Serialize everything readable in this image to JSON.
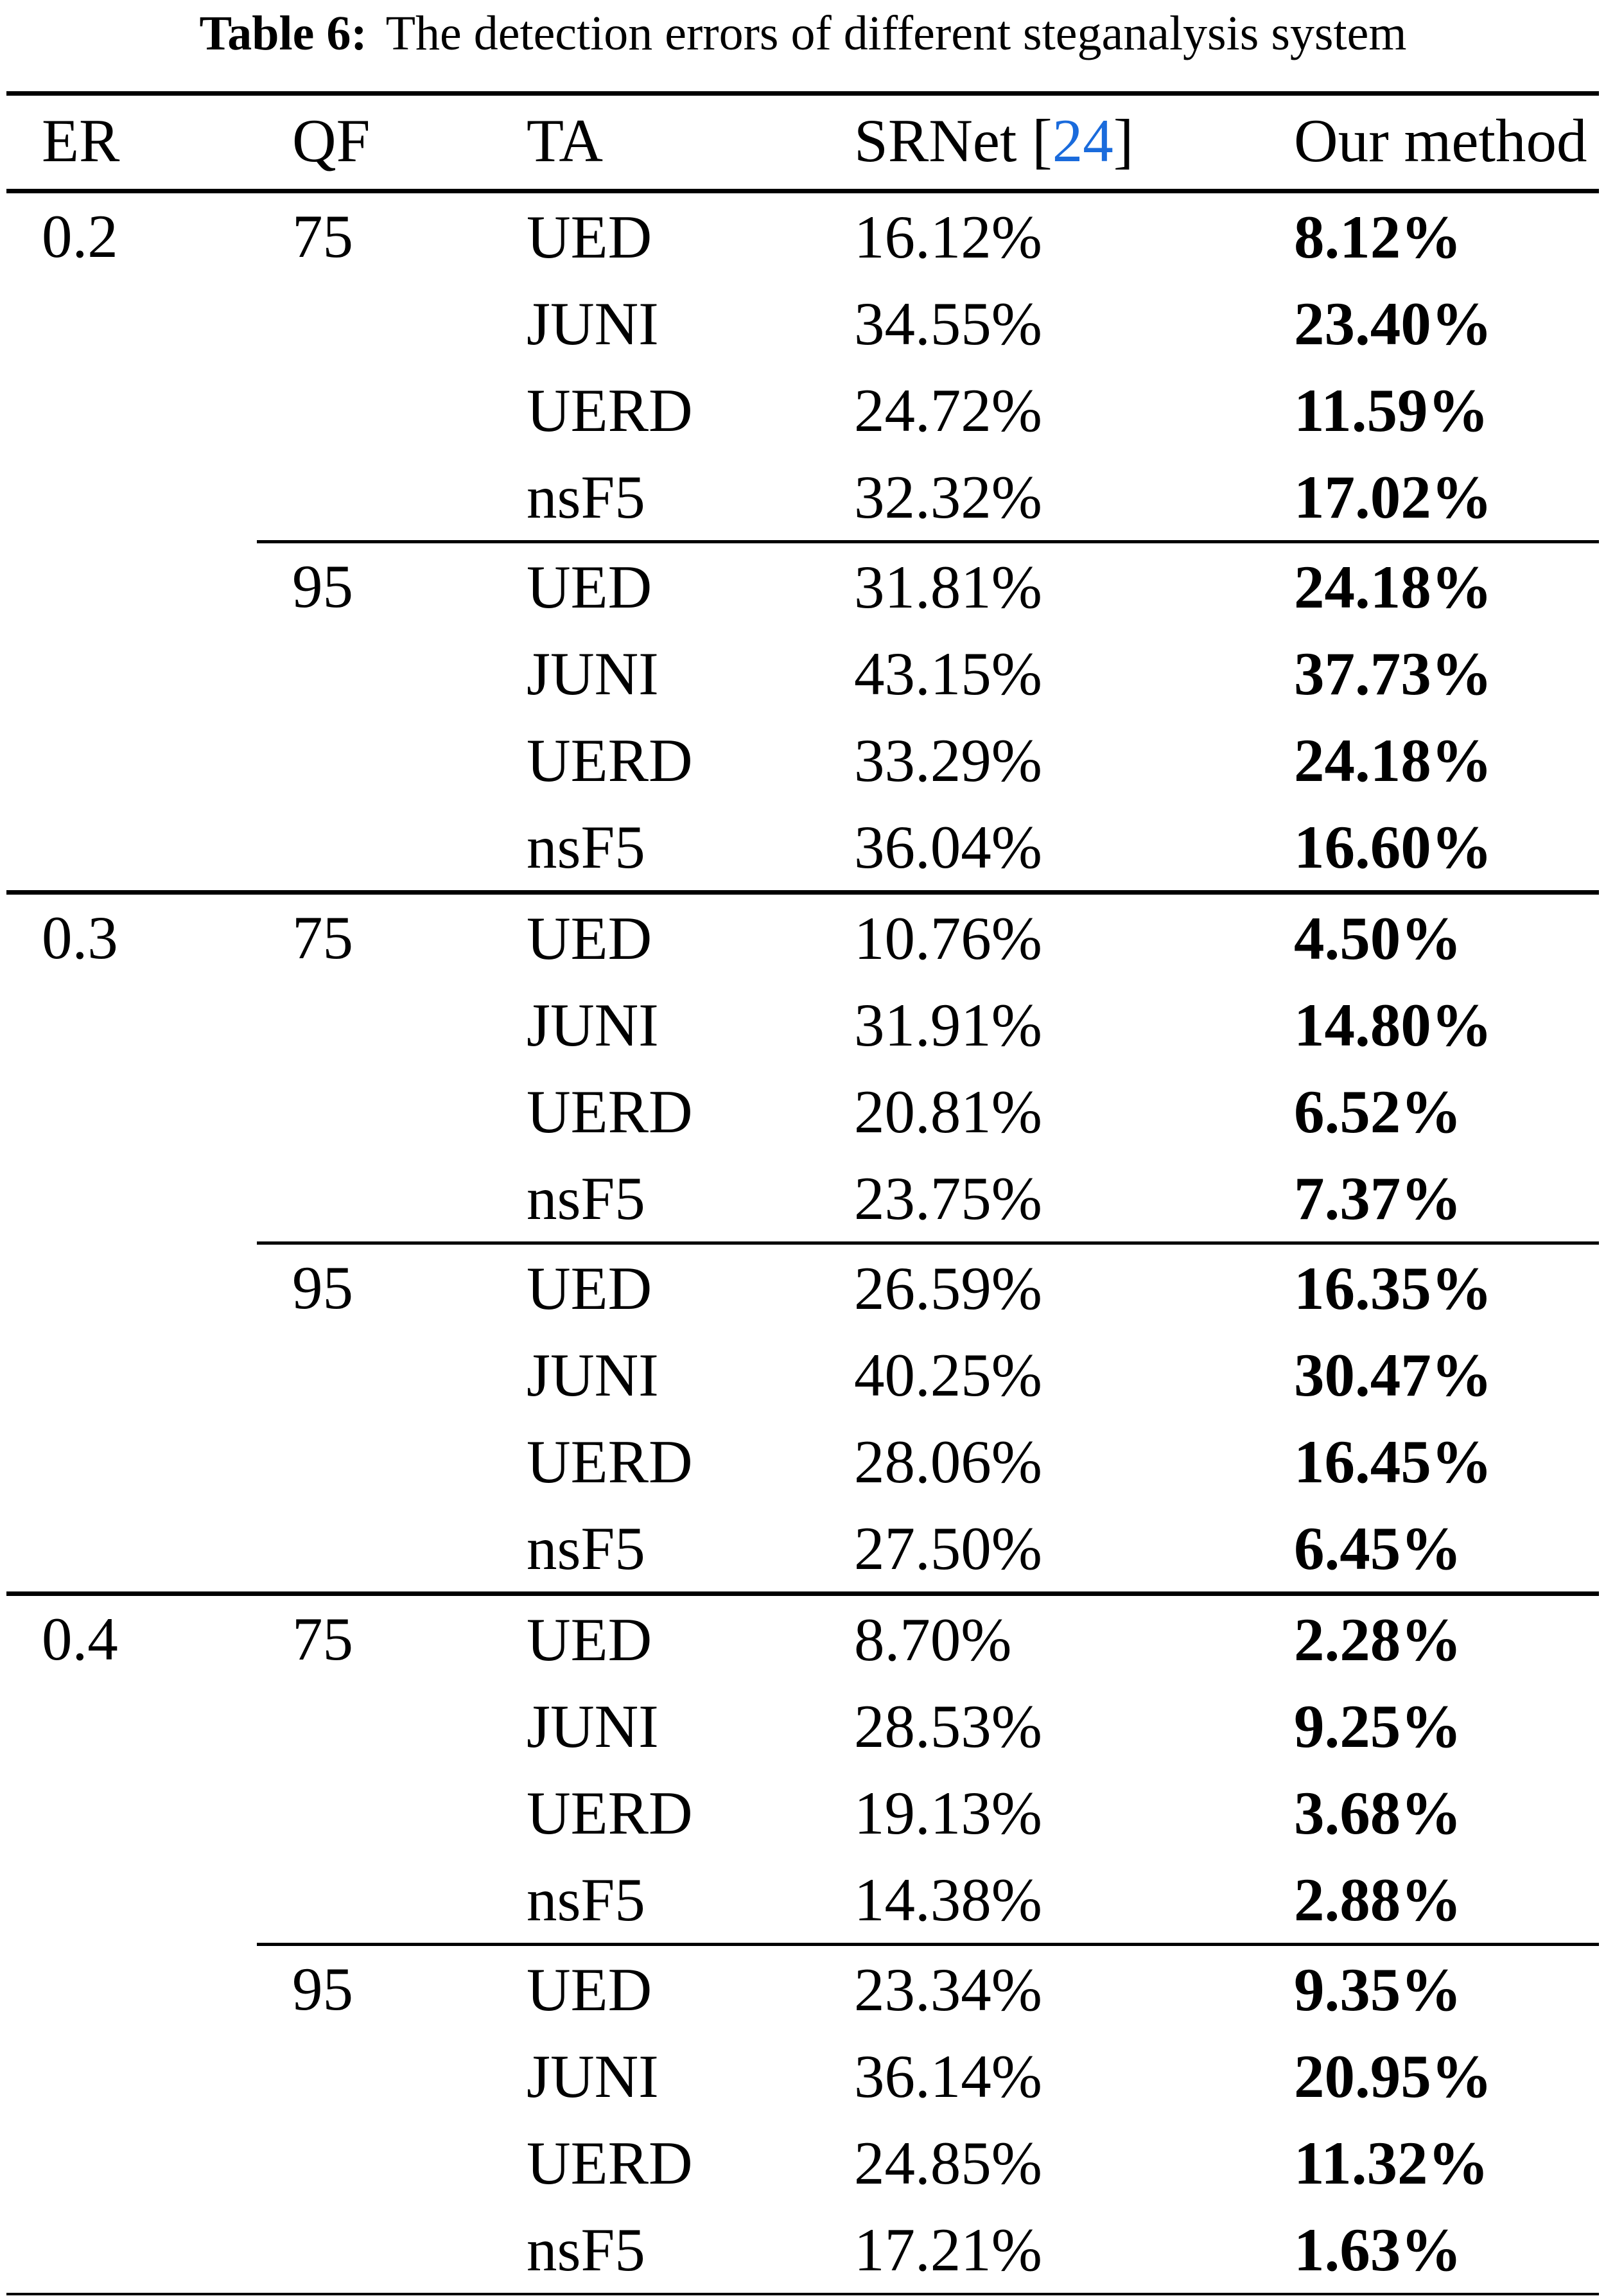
{
  "caption": {
    "label": "Table 6:",
    "text": "The detection errors of different steganalysis system"
  },
  "columns": [
    "ER",
    "QF",
    "TA",
    "SRNet [24]",
    "Our method"
  ],
  "srnet_header": {
    "prefix": "SRNet [",
    "citation": "24",
    "suffix": "]"
  },
  "colors": {
    "citation": "#1a6bdc",
    "text": "#000000",
    "background": "#ffffff"
  },
  "groups": [
    {
      "er": "0.2",
      "subgroups": [
        {
          "qf": "75",
          "rows": [
            {
              "ta": "UED",
              "srnet": "16.12%",
              "our": "8.12%"
            },
            {
              "ta": "JUNI",
              "srnet": "34.55%",
              "our": "23.40%"
            },
            {
              "ta": "UERD",
              "srnet": "24.72%",
              "our": "11.59%"
            },
            {
              "ta": "nsF5",
              "srnet": "32.32%",
              "our": "17.02%"
            }
          ]
        },
        {
          "qf": "95",
          "rows": [
            {
              "ta": "UED",
              "srnet": "31.81%",
              "our": "24.18%"
            },
            {
              "ta": "JUNI",
              "srnet": "43.15%",
              "our": "37.73%"
            },
            {
              "ta": "UERD",
              "srnet": "33.29%",
              "our": "24.18%"
            },
            {
              "ta": "nsF5",
              "srnet": "36.04%",
              "our": "16.60%"
            }
          ]
        }
      ]
    },
    {
      "er": "0.3",
      "subgroups": [
        {
          "qf": "75",
          "rows": [
            {
              "ta": "UED",
              "srnet": "10.76%",
              "our": "4.50%"
            },
            {
              "ta": "JUNI",
              "srnet": "31.91%",
              "our": "14.80%"
            },
            {
              "ta": "UERD",
              "srnet": "20.81%",
              "our": "6.52%"
            },
            {
              "ta": "nsF5",
              "srnet": "23.75%",
              "our": "7.37%"
            }
          ]
        },
        {
          "qf": "95",
          "rows": [
            {
              "ta": "UED",
              "srnet": "26.59%",
              "our": "16.35%"
            },
            {
              "ta": "JUNI",
              "srnet": "40.25%",
              "our": "30.47%"
            },
            {
              "ta": "UERD",
              "srnet": "28.06%",
              "our": "16.45%"
            },
            {
              "ta": "nsF5",
              "srnet": "27.50%",
              "our": "6.45%"
            }
          ]
        }
      ]
    },
    {
      "er": "0.4",
      "subgroups": [
        {
          "qf": "75",
          "rows": [
            {
              "ta": "UED",
              "srnet": "8.70%",
              "our": "2.28%"
            },
            {
              "ta": "JUNI",
              "srnet": "28.53%",
              "our": "9.25%"
            },
            {
              "ta": "UERD",
              "srnet": "19.13%",
              "our": "3.68%"
            },
            {
              "ta": "nsF5",
              "srnet": "14.38%",
              "our": "2.88%"
            }
          ]
        },
        {
          "qf": "95",
          "rows": [
            {
              "ta": "UED",
              "srnet": "23.34%",
              "our": "9.35%"
            },
            {
              "ta": "JUNI",
              "srnet": "36.14%",
              "our": "20.95%"
            },
            {
              "ta": "UERD",
              "srnet": "24.85%",
              "our": "11.32%"
            },
            {
              "ta": "nsF5",
              "srnet": "17.21%",
              "our": "1.63%"
            }
          ]
        }
      ]
    }
  ]
}
